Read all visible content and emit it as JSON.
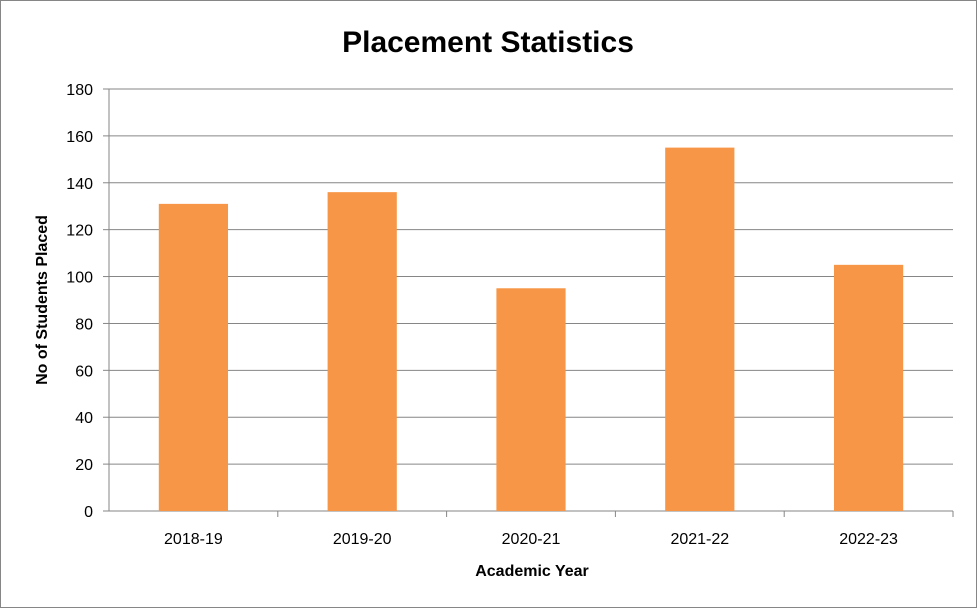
{
  "chart_data": {
    "type": "bar",
    "title": "Placement Statistics",
    "xlabel": "Academic Year",
    "ylabel": "No of Students Placed",
    "categories": [
      "2018-19",
      "2019-20",
      "2020-21",
      "2021-22",
      "2022-23"
    ],
    "values": [
      131,
      136,
      95,
      155,
      105
    ],
    "ylim": [
      0,
      180
    ],
    "yticks": [
      0,
      20,
      40,
      60,
      80,
      100,
      120,
      140,
      160,
      180
    ],
    "grid": true,
    "legend": "none",
    "bar_color": "#F79646",
    "grid_color": "#868686"
  }
}
